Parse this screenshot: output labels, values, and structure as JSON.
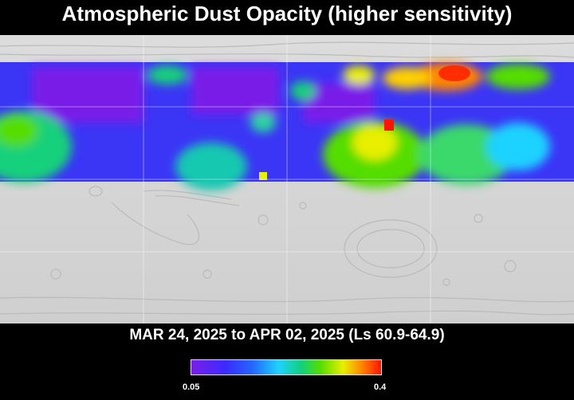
{
  "title": "Atmospheric Dust Opacity (higher sensitivity)",
  "date_range": "MAR 24, 2025 to APR 02, 2025 (Ls 60.9-64.9)",
  "colorbar": {
    "min_label": "0.05",
    "max_label": "0.4",
    "colors": [
      "#7a1fe8",
      "#3b2bff",
      "#2466ff",
      "#1fd2ff",
      "#12d07c",
      "#55dd00",
      "#e8ef00",
      "#ff8400",
      "#ff1300"
    ]
  }
}
